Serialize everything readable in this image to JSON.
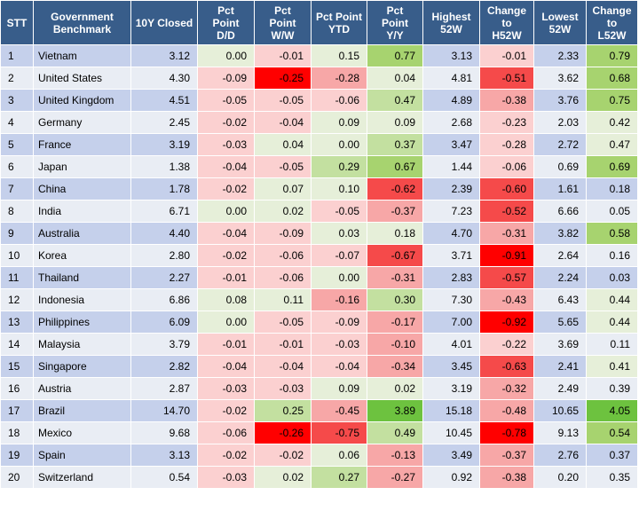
{
  "columns": [
    "STT",
    "Government\nBenchmark",
    "10Y Closed",
    "Pct\nPoint\nD/D",
    "Pct\nPoint\nW/W",
    "Pct Point\nYTD",
    "Pct\nPoint\nY/Y",
    "Highest\n52W",
    "Change\nto\nH52W",
    "Lowest\n52W",
    "Change to\nL52W"
  ],
  "rows": [
    {
      "stt": "1",
      "name": "Vietnam",
      "closed": "3.12",
      "dd": "0.00",
      "ww": "-0.01",
      "ytd": "0.15",
      "yy": "0.77",
      "h52": "3.13",
      "ch52": "-0.01",
      "l52": "2.33",
      "cl52": "0.79"
    },
    {
      "stt": "2",
      "name": "United States",
      "closed": "4.30",
      "dd": "-0.09",
      "ww": "-0.25",
      "ytd": "-0.28",
      "yy": "0.04",
      "h52": "4.81",
      "ch52": "-0.51",
      "l52": "3.62",
      "cl52": "0.68"
    },
    {
      "stt": "3",
      "name": "United Kingdom",
      "closed": "4.51",
      "dd": "-0.05",
      "ww": "-0.05",
      "ytd": "-0.06",
      "yy": "0.47",
      "h52": "4.89",
      "ch52": "-0.38",
      "l52": "3.76",
      "cl52": "0.75"
    },
    {
      "stt": "4",
      "name": "Germany",
      "closed": "2.45",
      "dd": "-0.02",
      "ww": "-0.04",
      "ytd": "0.09",
      "yy": "0.09",
      "h52": "2.68",
      "ch52": "-0.23",
      "l52": "2.03",
      "cl52": "0.42"
    },
    {
      "stt": "5",
      "name": "France",
      "closed": "3.19",
      "dd": "-0.03",
      "ww": "0.04",
      "ytd": "0.00",
      "yy": "0.37",
      "h52": "3.47",
      "ch52": "-0.28",
      "l52": "2.72",
      "cl52": "0.47"
    },
    {
      "stt": "6",
      "name": "Japan",
      "closed": "1.38",
      "dd": "-0.04",
      "ww": "-0.05",
      "ytd": "0.29",
      "yy": "0.67",
      "h52": "1.44",
      "ch52": "-0.06",
      "l52": "0.69",
      "cl52": "0.69"
    },
    {
      "stt": "7",
      "name": "China",
      "closed": "1.78",
      "dd": "-0.02",
      "ww": "0.07",
      "ytd": "0.10",
      "yy": "-0.62",
      "h52": "2.39",
      "ch52": "-0.60",
      "l52": "1.61",
      "cl52": "0.18"
    },
    {
      "stt": "8",
      "name": "India",
      "closed": "6.71",
      "dd": "0.00",
      "ww": "0.02",
      "ytd": "-0.05",
      "yy": "-0.37",
      "h52": "7.23",
      "ch52": "-0.52",
      "l52": "6.66",
      "cl52": "0.05"
    },
    {
      "stt": "9",
      "name": "Australia",
      "closed": "4.40",
      "dd": "-0.04",
      "ww": "-0.09",
      "ytd": "0.03",
      "yy": "0.18",
      "h52": "4.70",
      "ch52": "-0.31",
      "l52": "3.82",
      "cl52": "0.58"
    },
    {
      "stt": "10",
      "name": "Korea",
      "closed": "2.80",
      "dd": "-0.02",
      "ww": "-0.06",
      "ytd": "-0.07",
      "yy": "-0.67",
      "h52": "3.71",
      "ch52": "-0.91",
      "l52": "2.64",
      "cl52": "0.16"
    },
    {
      "stt": "11",
      "name": "Thailand",
      "closed": "2.27",
      "dd": "-0.01",
      "ww": "-0.06",
      "ytd": "0.00",
      "yy": "-0.31",
      "h52": "2.83",
      "ch52": "-0.57",
      "l52": "2.24",
      "cl52": "0.03"
    },
    {
      "stt": "12",
      "name": "Indonesia",
      "closed": "6.86",
      "dd": "0.08",
      "ww": "0.11",
      "ytd": "-0.16",
      "yy": "0.30",
      "h52": "7.30",
      "ch52": "-0.43",
      "l52": "6.43",
      "cl52": "0.44"
    },
    {
      "stt": "13",
      "name": "Philippines",
      "closed": "6.09",
      "dd": "0.00",
      "ww": "-0.05",
      "ytd": "-0.09",
      "yy": "-0.17",
      "h52": "7.00",
      "ch52": "-0.92",
      "l52": "5.65",
      "cl52": "0.44"
    },
    {
      "stt": "14",
      "name": "Malaysia",
      "closed": "3.79",
      "dd": "-0.01",
      "ww": "-0.01",
      "ytd": "-0.03",
      "yy": "-0.10",
      "h52": "4.01",
      "ch52": "-0.22",
      "l52": "3.69",
      "cl52": "0.11"
    },
    {
      "stt": "15",
      "name": "Singapore",
      "closed": "2.82",
      "dd": "-0.04",
      "ww": "-0.04",
      "ytd": "-0.04",
      "yy": "-0.34",
      "h52": "3.45",
      "ch52": "-0.63",
      "l52": "2.41",
      "cl52": "0.41"
    },
    {
      "stt": "16",
      "name": "Austria",
      "closed": "2.87",
      "dd": "-0.03",
      "ww": "-0.03",
      "ytd": "0.09",
      "yy": "0.02",
      "h52": "3.19",
      "ch52": "-0.32",
      "l52": "2.49",
      "cl52": "0.39"
    },
    {
      "stt": "17",
      "name": "Brazil",
      "closed": "14.70",
      "dd": "-0.02",
      "ww": "0.25",
      "ytd": "-0.45",
      "yy": "3.89",
      "h52": "15.18",
      "ch52": "-0.48",
      "l52": "10.65",
      "cl52": "4.05"
    },
    {
      "stt": "18",
      "name": "Mexico",
      "closed": "9.68",
      "dd": "-0.06",
      "ww": "-0.26",
      "ytd": "-0.75",
      "yy": "0.49",
      "h52": "10.45",
      "ch52": "-0.78",
      "l52": "9.13",
      "cl52": "0.54"
    },
    {
      "stt": "19",
      "name": "Spain",
      "closed": "3.13",
      "dd": "-0.02",
      "ww": "-0.02",
      "ytd": "0.06",
      "yy": "-0.13",
      "h52": "3.49",
      "ch52": "-0.37",
      "l52": "2.76",
      "cl52": "0.37"
    },
    {
      "stt": "20",
      "name": "Switzerland",
      "closed": "0.54",
      "dd": "-0.03",
      "ww": "0.02",
      "ytd": "0.27",
      "yy": "-0.27",
      "h52": "0.92",
      "ch52": "-0.38",
      "l52": "0.20",
      "cl52": "0.35"
    }
  ]
}
